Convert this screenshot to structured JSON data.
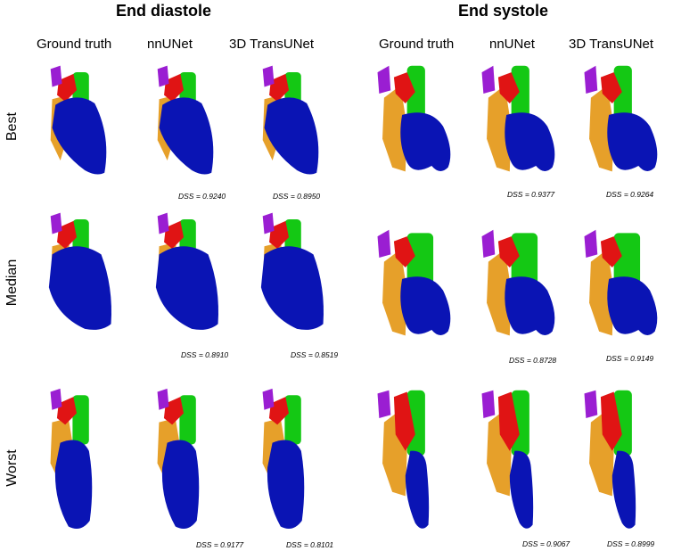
{
  "sections": [
    {
      "title": "End diastole",
      "columns": [
        "Ground truth",
        "nnUNet",
        "3D TransUNet"
      ]
    },
    {
      "title": "End systole",
      "columns": [
        "Ground truth",
        "nnUNet",
        "3D TransUNet"
      ]
    }
  ],
  "rows": [
    "Best",
    "Median",
    "Worst"
  ],
  "dss": {
    "diastole": [
      [
        "",
        "DSS = 0.9240",
        "DSS = 0.8950"
      ],
      [
        "",
        "DSS = 0.8910",
        "DSS = 0.8519"
      ],
      [
        "",
        "DSS = 0.9177",
        "DSS = 0.8101"
      ]
    ],
    "systole": [
      [
        "",
        "DSS = 0.9377",
        "DSS = 0.9264"
      ],
      [
        "",
        "DSS = 0.8728",
        "DSS = 0.9149"
      ],
      [
        "",
        "DSS = 0.9067",
        "DSS = 0.8999"
      ]
    ]
  },
  "colors": {
    "left_ventricle": "#0a14b4",
    "myocardium": "#e6a02a",
    "atrium": "#e01414",
    "aorta": "#14c814",
    "pulmonary_veins": "#9a1ed2"
  }
}
